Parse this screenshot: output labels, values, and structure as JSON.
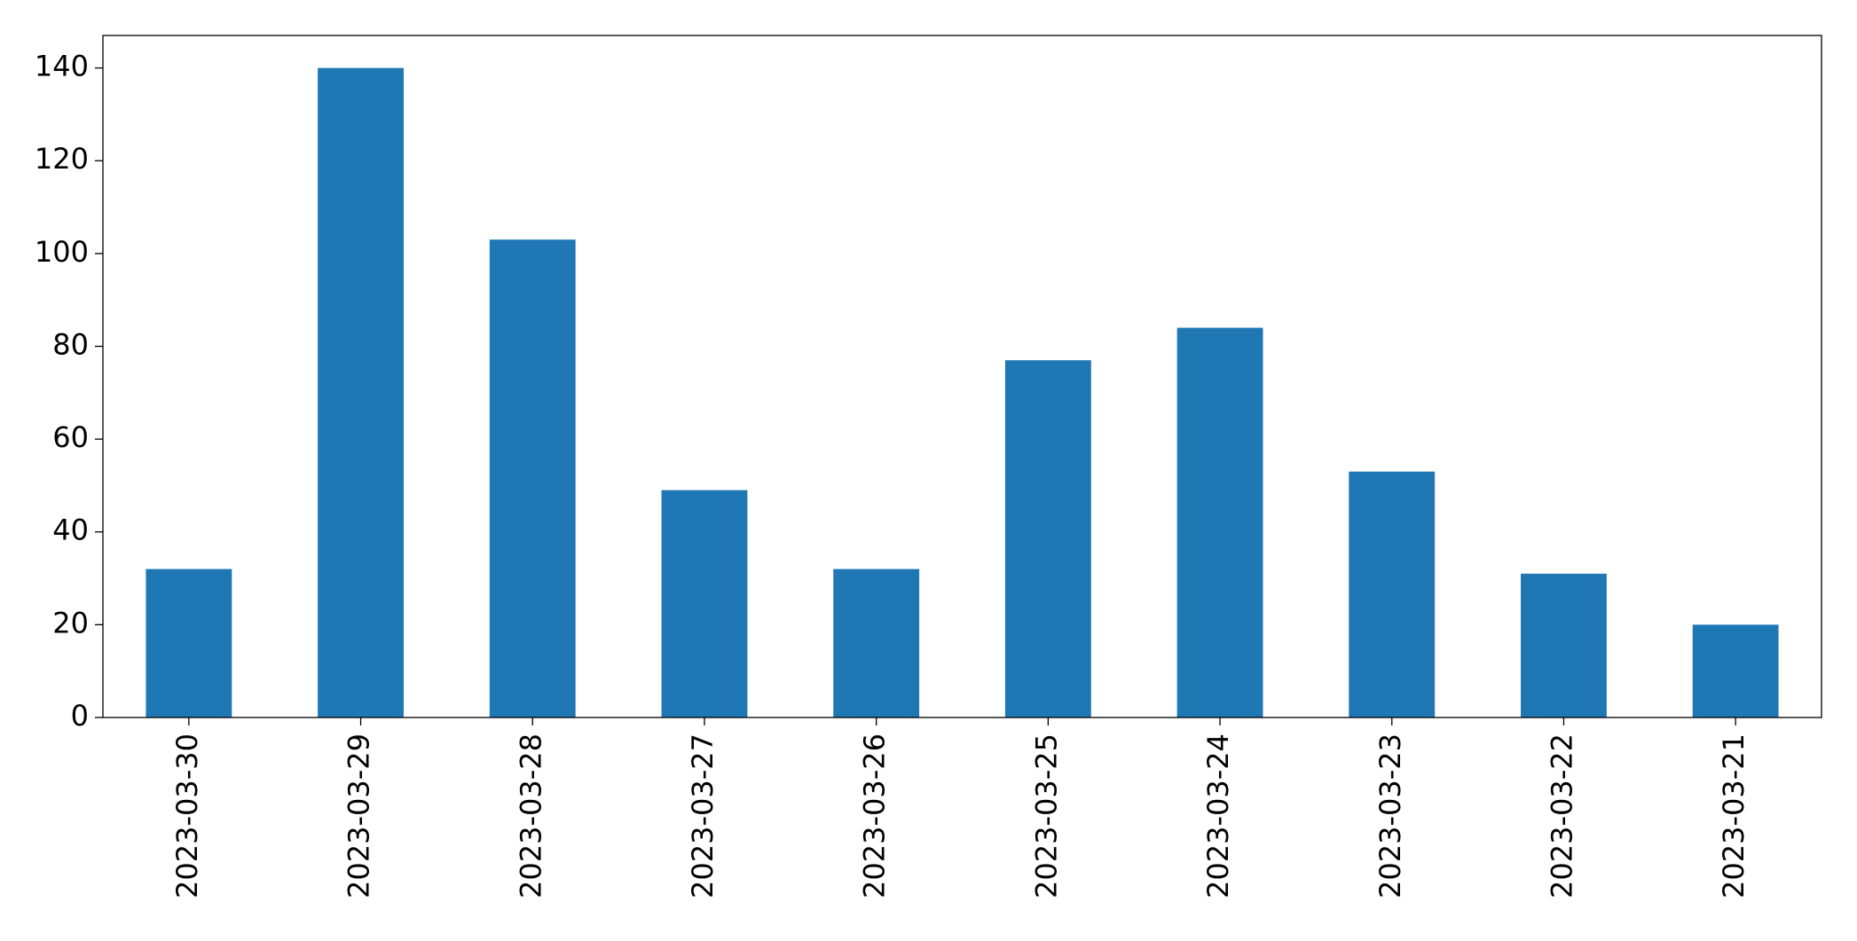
{
  "chart_data": {
    "type": "bar",
    "categories": [
      "2023-03-30",
      "2023-03-29",
      "2023-03-28",
      "2023-03-27",
      "2023-03-26",
      "2023-03-25",
      "2023-03-24",
      "2023-03-23",
      "2023-03-22",
      "2023-03-21"
    ],
    "values": [
      32,
      140,
      103,
      49,
      32,
      77,
      84,
      53,
      31,
      20
    ],
    "color": "#1f77b4",
    "ylim": [
      0,
      147
    ],
    "yticks": [
      0,
      20,
      40,
      60,
      80,
      100,
      120,
      140
    ],
    "grid": false
  }
}
